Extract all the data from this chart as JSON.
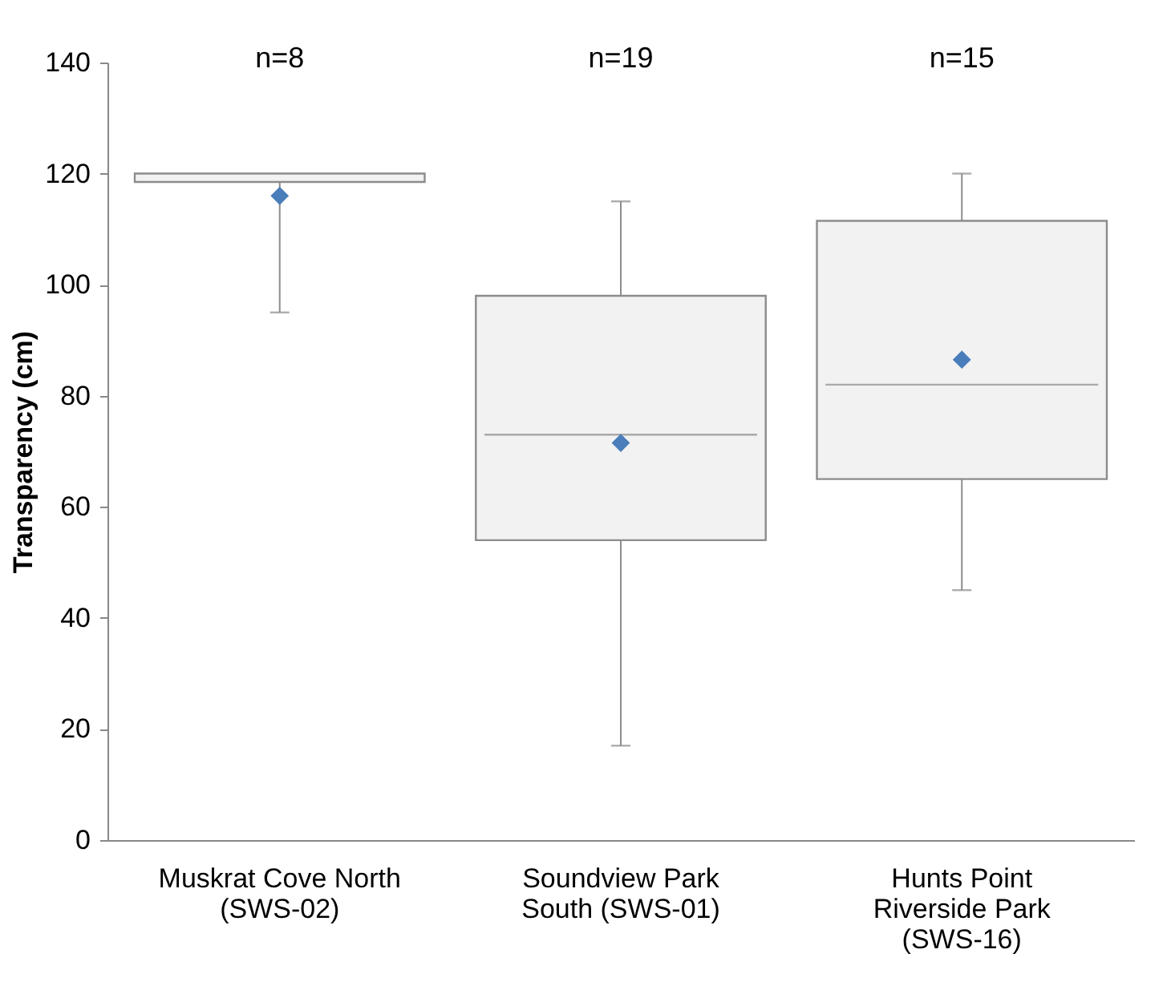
{
  "chart_data": {
    "type": "box",
    "ylabel": "Transparency (cm)",
    "categories": [
      "Muskrat Cove North (SWS-02)",
      "Soundview Park South (SWS-01)",
      "Hunts Point Riverside Park (SWS-16)"
    ],
    "boxes": [
      {
        "low": 95,
        "q1": 118.5,
        "median": 120,
        "q3": 120,
        "high": 120
      },
      {
        "low": 17,
        "q1": 54,
        "median": 73,
        "q3": 98,
        "high": 115
      },
      {
        "low": 45,
        "q1": 65,
        "median": 82,
        "q3": 111.5,
        "high": 120
      }
    ],
    "color": "#f2f2f2",
    "series": [
      {
        "type": "scatter",
        "color": "#4a7ebb",
        "marker": "diamond",
        "x": [
          "Muskrat Cove North (SWS-02)",
          "Soundview Park South (SWS-01)",
          "Hunts Point Riverside Park (SWS-16)"
        ],
        "values": [
          116,
          71.5,
          86.5
        ]
      }
    ],
    "annotations": [
      "n=8",
      "n=19",
      "n=15"
    ],
    "ylim": [
      0,
      140
    ],
    "yticks": [
      0,
      20,
      40,
      60,
      80,
      100,
      120,
      140
    ],
    "grid": false
  }
}
